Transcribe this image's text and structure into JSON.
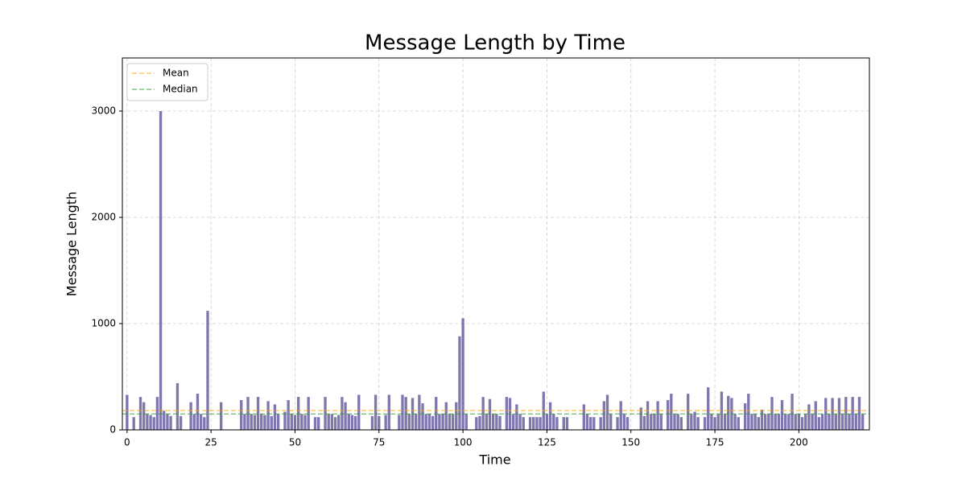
{
  "chart_data": {
    "type": "bar",
    "title": "Message Length by Time",
    "xlabel": "Time",
    "ylabel": "Message Length",
    "x": [
      0,
      1,
      2,
      3,
      4,
      5,
      6,
      7,
      8,
      9,
      10,
      11,
      12,
      13,
      14,
      15,
      16,
      17,
      18,
      19,
      20,
      21,
      22,
      23,
      24,
      25,
      26,
      27,
      28,
      29,
      30,
      31,
      32,
      33,
      34,
      35,
      36,
      37,
      38,
      39,
      40,
      41,
      42,
      43,
      44,
      45,
      46,
      47,
      48,
      49,
      50,
      51,
      52,
      53,
      54,
      55,
      56,
      57,
      58,
      59,
      60,
      61,
      62,
      63,
      64,
      65,
      66,
      67,
      68,
      69,
      70,
      71,
      72,
      73,
      74,
      75,
      76,
      77,
      78,
      79,
      80,
      81,
      82,
      83,
      84,
      85,
      86,
      87,
      88,
      89,
      90,
      91,
      92,
      93,
      94,
      95,
      96,
      97,
      98,
      99,
      100,
      101,
      102,
      103,
      104,
      105,
      106,
      107,
      108,
      109,
      110,
      111,
      112,
      113,
      114,
      115,
      116,
      117,
      118,
      119,
      120,
      121,
      122,
      123,
      124,
      125,
      126,
      127,
      128,
      129,
      130,
      131,
      132,
      133,
      134,
      135,
      136,
      137,
      138,
      139,
      140,
      141,
      142,
      143,
      144,
      145,
      146,
      147,
      148,
      149,
      150,
      151,
      152,
      153,
      154,
      155,
      156,
      157,
      158,
      159,
      160,
      161,
      162,
      163,
      164,
      165,
      166,
      167,
      168,
      169,
      170,
      171,
      172,
      173,
      174,
      175,
      176,
      177,
      178,
      179,
      180,
      181,
      182,
      183,
      184,
      185,
      186,
      187,
      188,
      189,
      190,
      191,
      192,
      193,
      194,
      195,
      196,
      197,
      198,
      199,
      200,
      201,
      202,
      203,
      204,
      205,
      206,
      207,
      208,
      209,
      210,
      211,
      212,
      213,
      214,
      215,
      216,
      217,
      218,
      219
    ],
    "values": [
      330,
      null,
      120,
      null,
      310,
      260,
      150,
      140,
      120,
      310,
      3000,
      180,
      150,
      130,
      null,
      440,
      130,
      null,
      null,
      260,
      150,
      340,
      150,
      120,
      1120,
      null,
      null,
      null,
      260,
      null,
      null,
      null,
      null,
      null,
      280,
      150,
      310,
      150,
      140,
      310,
      150,
      140,
      270,
      130,
      240,
      150,
      null,
      170,
      280,
      150,
      140,
      310,
      150,
      140,
      310,
      null,
      120,
      120,
      null,
      310,
      150,
      150,
      120,
      140,
      310,
      260,
      150,
      140,
      130,
      330,
      null,
      null,
      null,
      130,
      330,
      130,
      null,
      140,
      330,
      null,
      null,
      140,
      330,
      310,
      150,
      300,
      150,
      330,
      250,
      150,
      150,
      130,
      310,
      150,
      150,
      260,
      150,
      150,
      260,
      880,
      1050,
      150,
      null,
      null,
      120,
      130,
      310,
      150,
      290,
      150,
      150,
      130,
      null,
      310,
      300,
      150,
      240,
      150,
      120,
      null,
      120,
      120,
      120,
      120,
      360,
      150,
      260,
      150,
      120,
      null,
      120,
      120,
      null,
      null,
      null,
      null,
      240,
      150,
      120,
      120,
      null,
      120,
      270,
      330,
      150,
      null,
      120,
      270,
      150,
      120,
      null,
      null,
      null,
      210,
      130,
      270,
      150,
      150,
      270,
      150,
      null,
      280,
      340,
      150,
      150,
      120,
      null,
      340,
      150,
      170,
      120,
      null,
      120,
      400,
      150,
      120,
      150,
      360,
      150,
      320,
      300,
      150,
      120,
      null,
      250,
      340,
      150,
      150,
      120,
      190,
      150,
      150,
      310,
      150,
      150,
      280,
      150,
      150,
      340,
      150,
      150,
      120,
      150,
      240,
      150,
      270,
      120,
      150,
      300,
      150,
      300,
      150,
      300,
      150,
      310,
      150,
      310,
      150,
      310,
      150
    ],
    "color": "#483d8b",
    "lines": [
      {
        "name": "Mean",
        "value": 182,
        "color": "#ffa500"
      },
      {
        "name": "Median",
        "value": 150,
        "color": "#2ca02c"
      }
    ],
    "xlim": [
      -1.4,
      221
    ],
    "ylim": [
      0,
      3500
    ],
    "xticks": [
      0,
      25,
      50,
      75,
      100,
      125,
      150,
      175,
      200
    ],
    "yticks": [
      0,
      1000,
      2000,
      3000
    ],
    "grid": true,
    "legend": "upper left"
  }
}
